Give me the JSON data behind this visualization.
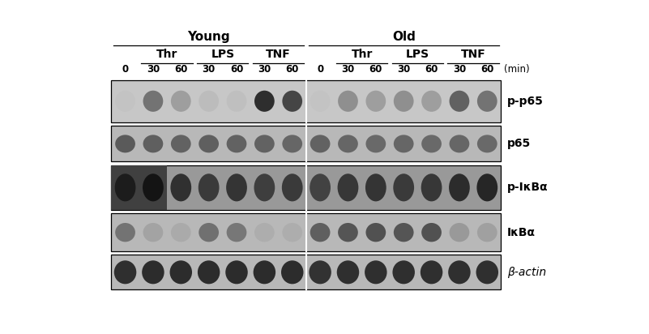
{
  "fig_width": 8.01,
  "fig_height": 4.12,
  "dpi": 100,
  "bg_color": "#ffffff",
  "young_label": "Young",
  "old_label": "Old",
  "thr_label": "Thr",
  "lps_label": "LPS",
  "tnf_label": "TNF",
  "min_label": "(min)",
  "time_labels": [
    "0",
    "30",
    "60",
    "30",
    "60",
    "30",
    "60",
    "0",
    "30",
    "60",
    "30",
    "60",
    "30",
    "60"
  ],
  "row_labels": [
    "p-p65",
    "p65",
    "p-IκBα",
    "IκBα",
    "β-actin"
  ],
  "n_lanes": 14,
  "n_rows": 5,
  "band_intensity_pp65": [
    0.02,
    0.45,
    0.22,
    0.06,
    0.04,
    0.82,
    0.7,
    0.02,
    0.3,
    0.22,
    0.3,
    0.22,
    0.55,
    0.45
  ],
  "band_intensity_p65": [
    0.55,
    0.52,
    0.5,
    0.52,
    0.5,
    0.5,
    0.48,
    0.5,
    0.48,
    0.46,
    0.48,
    0.46,
    0.48,
    0.46
  ],
  "band_intensity_pikba": [
    0.7,
    0.85,
    0.75,
    0.68,
    0.72,
    0.65,
    0.68,
    0.62,
    0.7,
    0.72,
    0.68,
    0.7,
    0.78,
    0.82
  ],
  "band_intensity_ikba": [
    0.4,
    0.12,
    0.08,
    0.42,
    0.38,
    0.06,
    0.06,
    0.52,
    0.58,
    0.6,
    0.58,
    0.6,
    0.18,
    0.14
  ],
  "band_intensity_bactin": [
    0.8,
    0.82,
    0.82,
    0.82,
    0.82,
    0.82,
    0.82,
    0.78,
    0.8,
    0.8,
    0.8,
    0.8,
    0.8,
    0.8
  ],
  "row_bg_grays": [
    0.78,
    0.72,
    0.6,
    0.72,
    0.72
  ],
  "pikba_dark_lanes": [
    0,
    1
  ],
  "divider_lane": 7,
  "header_fontsize": 10,
  "time_fontsize": 8.5,
  "row_label_fontsize": 10
}
